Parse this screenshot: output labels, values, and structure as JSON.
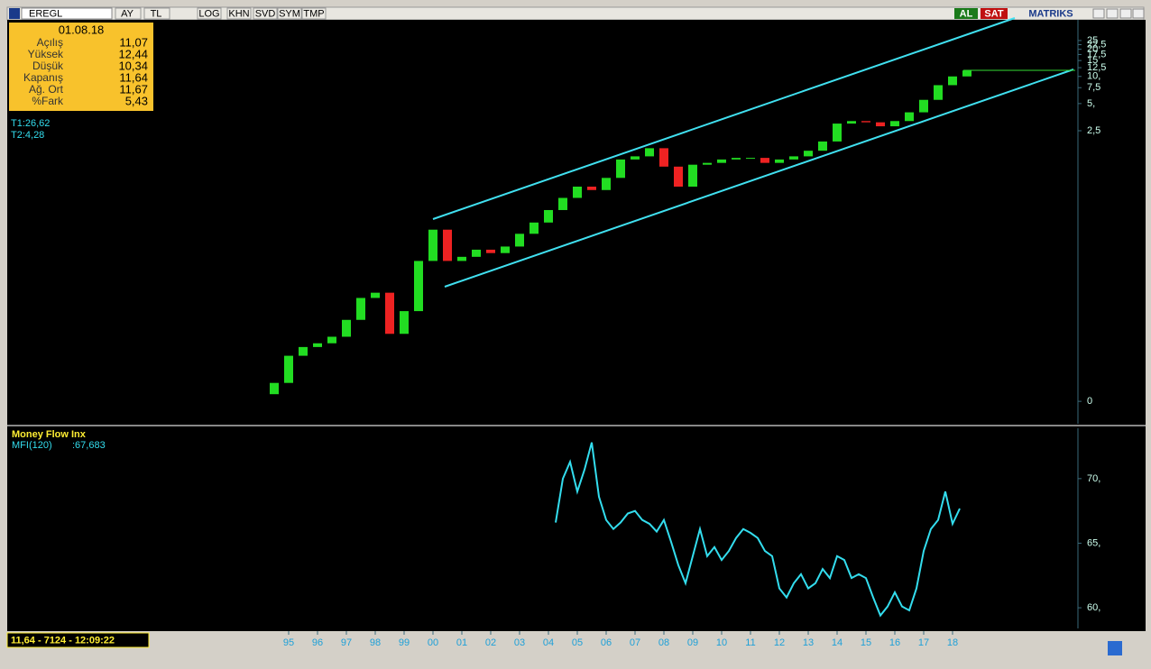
{
  "toolbar": {
    "symbol": "EREGL",
    "buttons": [
      "AY",
      "TL",
      "LOG",
      "KHN",
      "SVD",
      "SYM",
      "TMP"
    ],
    "buy": "AL",
    "sell": "SAT",
    "brand": "MATRIKS"
  },
  "info": {
    "date": "01.08.18",
    "rows": [
      [
        "Açılış",
        "11,07"
      ],
      [
        "Yüksek",
        "12,44"
      ],
      [
        "Düşük",
        "10,34"
      ],
      [
        "Kapanış",
        "11,64"
      ],
      [
        "Ağ. Ort",
        "11,67"
      ],
      [
        "%Fark",
        "5,43"
      ]
    ]
  },
  "trend_labels": [
    "T1:26,62",
    "T2:4,28"
  ],
  "status": "11,64 - 7124 - 12:09:22",
  "chart_data": [
    {
      "type": "candlestick",
      "log_scale": true,
      "up_color": "#22dd22",
      "down_color": "#ee2222",
      "x": [
        1994.5,
        1995,
        1995.5,
        1996,
        1996.5,
        1997,
        1997.5,
        1998,
        1998.5,
        1999,
        1999.5,
        2000,
        2000.5,
        2001,
        2001.5,
        2002,
        2002.5,
        2003,
        2003.5,
        2004,
        2004.5,
        2005,
        2005.5,
        2006,
        2006.5,
        2007,
        2007.5,
        2008,
        2008.5,
        2009,
        2009.5,
        2010,
        2010.5,
        2011,
        2011.5,
        2012,
        2012.5,
        2013,
        2013.5,
        2014,
        2014.5,
        2015,
        2015.5,
        2016,
        2016.5,
        2017,
        2017.5,
        2018,
        2018.5
      ],
      "open": [
        0.003,
        0.004,
        0.008,
        0.01,
        0.011,
        0.013,
        0.02,
        0.035,
        0.04,
        0.014,
        0.025,
        0.09,
        0.2,
        0.09,
        0.1,
        0.12,
        0.11,
        0.13,
        0.18,
        0.24,
        0.33,
        0.45,
        0.6,
        0.55,
        0.75,
        1.2,
        1.3,
        1.6,
        1.0,
        0.6,
        1.05,
        1.1,
        1.2,
        1.25,
        1.25,
        1.1,
        1.2,
        1.3,
        1.5,
        1.9,
        3.0,
        3.2,
        3.1,
        2.8,
        3.2,
        4.0,
        5.5,
        8.0,
        10.0
      ],
      "close": [
        0.004,
        0.008,
        0.01,
        0.011,
        0.013,
        0.02,
        0.035,
        0.04,
        0.014,
        0.025,
        0.09,
        0.2,
        0.09,
        0.1,
        0.12,
        0.11,
        0.13,
        0.18,
        0.24,
        0.33,
        0.45,
        0.6,
        0.55,
        0.75,
        1.2,
        1.3,
        1.6,
        1.0,
        0.6,
        1.05,
        1.1,
        1.2,
        1.25,
        1.25,
        1.1,
        1.2,
        1.3,
        1.5,
        1.9,
        3.0,
        3.2,
        3.1,
        2.8,
        3.2,
        4.0,
        5.5,
        8.0,
        10.0,
        11.64
      ],
      "xlim": [
        1985.3125,
        2022.34375
      ],
      "ylim": [
        0.00141,
        42.4
      ],
      "yticks": [
        25,
        {
          "value": 22.5,
          "label": "22,5"
        },
        20,
        {
          "value": 17.5,
          "label": "17,5"
        },
        15,
        {
          "value": 12.5,
          "label": "12,5"
        },
        {
          "value": 10,
          "label": "10,"
        },
        {
          "value": 7.5,
          "label": "7,5"
        },
        {
          "value": 5,
          "label": "5,"
        },
        {
          "value": 2.5,
          "label": "2,5"
        },
        {
          "value": 0.0025,
          "label": "0"
        }
      ]
    },
    {
      "type": "line",
      "title": "Money Flow Inx",
      "x": [
        2004.25,
        2004.5,
        2004.75,
        2005,
        2005.25,
        2005.5,
        2005.75,
        2006,
        2006.25,
        2006.5,
        2006.75,
        2007,
        2007.25,
        2007.5,
        2007.75,
        2008,
        2008.25,
        2008.5,
        2008.75,
        2009,
        2009.25,
        2009.5,
        2009.75,
        2010,
        2010.25,
        2010.5,
        2010.75,
        2011,
        2011.25,
        2011.5,
        2011.75,
        2012,
        2012.25,
        2012.5,
        2012.75,
        2013,
        2013.25,
        2013.5,
        2013.75,
        2014,
        2014.25,
        2014.5,
        2014.75,
        2015,
        2015.25,
        2015.5,
        2015.75,
        2016,
        2016.25,
        2016.5,
        2016.75,
        2017,
        2017.25,
        2017.5,
        2017.75,
        2018,
        2018.25
      ],
      "series": [
        {
          "name": "MFI(120)",
          "color": "#33ddee",
          "current_label": ":67,683",
          "values": [
            66.6,
            70,
            71.3,
            69,
            70.7,
            72.8,
            68.6,
            66.8,
            66.1,
            66.6,
            67.3,
            67.5,
            66.8,
            66.5,
            65.9,
            66.8,
            65.1,
            63.3,
            61.9,
            64,
            66.1,
            64,
            64.7,
            63.7,
            64.4,
            65.4,
            66.1,
            65.8,
            65.4,
            64.4,
            64,
            61.5,
            60.8,
            61.9,
            62.6,
            61.5,
            61.9,
            63,
            62.3,
            64,
            63.7,
            62.3,
            62.6,
            62.3,
            60.8,
            59.4,
            60.1,
            61.2,
            60.1,
            59.8,
            61.5,
            64.4,
            66.1,
            66.8,
            69,
            66.5,
            67.683
          ]
        }
      ],
      "xlim": [
        1985.3125,
        2022.34375
      ],
      "ylim": [
        58.4,
        73.9
      ],
      "yticks": [
        {
          "value": 70,
          "label": "70,"
        },
        {
          "value": 65,
          "label": "65,"
        },
        {
          "value": 60,
          "label": "60,"
        }
      ],
      "xticks": [
        {
          "value": 1995,
          "label": "95"
        },
        {
          "value": 1996,
          "label": "96"
        },
        {
          "value": 1997,
          "label": "97"
        },
        {
          "value": 1998,
          "label": "98"
        },
        {
          "value": 1999,
          "label": "99"
        },
        {
          "value": 2000,
          "label": "00"
        },
        {
          "value": 2001,
          "label": "01"
        },
        {
          "value": 2002,
          "label": "02"
        },
        {
          "value": 2003,
          "label": "03"
        },
        {
          "value": 2004,
          "label": "04"
        },
        {
          "value": 2005,
          "label": "05"
        },
        {
          "value": 2006,
          "label": "06"
        },
        {
          "value": 2007,
          "label": "07"
        },
        {
          "value": 2008,
          "label": "08"
        },
        {
          "value": 2009,
          "label": "09"
        },
        {
          "value": 2010,
          "label": "10"
        },
        {
          "value": 2011,
          "label": "11"
        },
        {
          "value": 2012,
          "label": "12"
        },
        {
          "value": 2013,
          "label": "13"
        },
        {
          "value": 2014,
          "label": "14"
        },
        {
          "value": 2015,
          "label": "15"
        },
        {
          "value": 2016,
          "label": "16"
        },
        {
          "value": 2017,
          "label": "17"
        },
        {
          "value": 2018,
          "label": "18"
        }
      ]
    }
  ]
}
